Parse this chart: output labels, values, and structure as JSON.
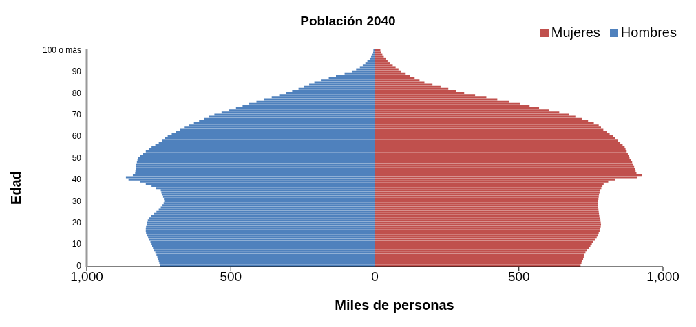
{
  "chart_data": {
    "type": "bar",
    "orientation": "horizontal",
    "stacked": true,
    "title": "Población 2040",
    "xlabel": "Miles de personas",
    "ylabel": "Edad",
    "legend": "top right",
    "grid": false,
    "categories": [
      "100 o más",
      null,
      null,
      null,
      null,
      null,
      null,
      null,
      null,
      null,
      "90",
      null,
      null,
      null,
      null,
      null,
      null,
      null,
      null,
      null,
      "80",
      null,
      null,
      null,
      null,
      null,
      null,
      null,
      null,
      null,
      "70",
      null,
      null,
      null,
      null,
      null,
      null,
      null,
      null,
      null,
      "60",
      null,
      null,
      null,
      null,
      null,
      null,
      null,
      null,
      null,
      "50",
      null,
      null,
      null,
      null,
      null,
      null,
      null,
      null,
      null,
      "40",
      null,
      null,
      null,
      null,
      null,
      null,
      null,
      null,
      null,
      "30",
      null,
      null,
      null,
      null,
      null,
      null,
      null,
      null,
      null,
      "20",
      null,
      null,
      null,
      null,
      null,
      null,
      null,
      null,
      null,
      "10",
      null,
      null,
      null,
      null,
      null,
      null,
      null,
      null,
      null,
      "0"
    ],
    "xlim": [
      -1000,
      1000
    ],
    "xticks": [
      {
        "value": -1000,
        "label": "1,000"
      },
      {
        "value": -500,
        "label": "500"
      },
      0,
      500,
      {
        "value": 1000,
        "label": "1,000"
      }
    ],
    "series": [
      {
        "name": "Mujeres",
        "color": "#c0504d",
        "values": [
          19,
          22,
          26,
          31,
          37,
          44,
          52,
          62,
          72,
          82,
          92,
          107,
          122,
          138,
          155,
          172,
          200,
          228,
          255,
          283,
          310,
          348,
          387,
          425,
          465,
          504,
          537,
          570,
          605,
          640,
          673,
          696,
          718,
          740,
          760,
          777,
          785,
          793,
          804,
          815,
          826,
          835,
          844,
          852,
          860,
          867,
          870,
          874,
          878,
          881,
          884,
          889,
          893,
          897,
          900,
          903,
          905,
          908,
          927,
          910,
          835,
          810,
          794,
          790,
          786,
          782,
          780,
          778,
          777,
          776,
          775,
          775,
          775,
          775,
          776,
          777,
          778,
          779,
          781,
          783,
          784,
          785,
          784,
          782,
          780,
          777,
          774,
          770,
          765,
          758,
          753,
          748,
          743,
          737,
          731,
          726,
          725,
          723,
          720,
          717,
          714
        ]
      },
      {
        "name": "Hombres",
        "color": "#4f81bd",
        "values": [
          -5,
          -6,
          -9,
          -13,
          -18,
          -26,
          -33,
          -42,
          -52,
          -65,
          -80,
          -105,
          -135,
          -160,
          -185,
          -210,
          -228,
          -245,
          -265,
          -287,
          -307,
          -332,
          -358,
          -384,
          -411,
          -436,
          -459,
          -482,
          -507,
          -532,
          -557,
          -575,
          -592,
          -610,
          -628,
          -646,
          -660,
          -675,
          -690,
          -705,
          -719,
          -728,
          -738,
          -750,
          -762,
          -775,
          -785,
          -795,
          -805,
          -815,
          -823,
          -824,
          -826,
          -828,
          -829,
          -830,
          -831,
          -832,
          -840,
          -864,
          -855,
          -816,
          -795,
          -775,
          -760,
          -743,
          -741,
          -738,
          -735,
          -732,
          -731,
          -733,
          -737,
          -743,
          -750,
          -758,
          -768,
          -776,
          -783,
          -788,
          -791,
          -792,
          -794,
          -795,
          -795,
          -794,
          -791,
          -787,
          -783,
          -779,
          -775,
          -773,
          -770,
          -766,
          -762,
          -758,
          -755,
          -752,
          -750,
          -748,
          -746
        ]
      }
    ]
  }
}
